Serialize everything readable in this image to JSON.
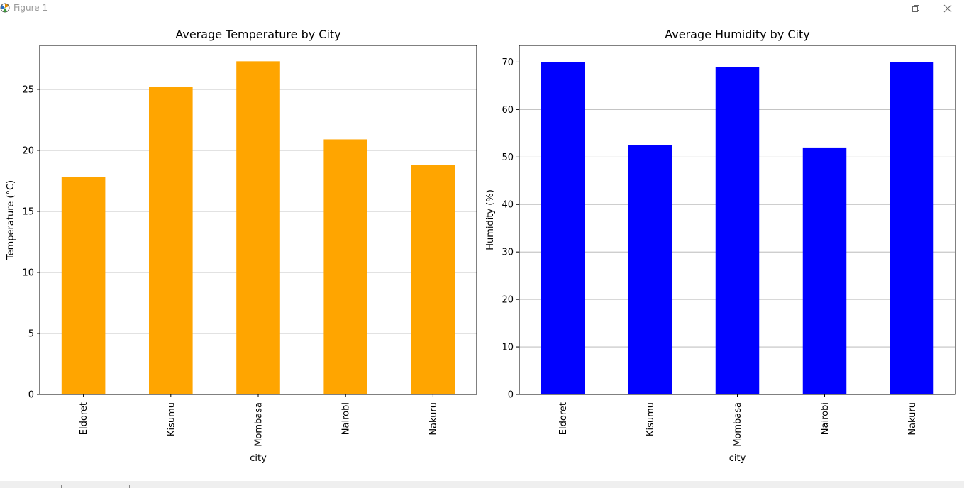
{
  "window": {
    "title": "Figure 1",
    "controls": [
      "minimize",
      "restore",
      "close"
    ]
  },
  "chart_data": [
    {
      "type": "bar",
      "title": "Average Temperature by City",
      "xlabel": "city",
      "ylabel": "Temperature (°C)",
      "categories": [
        "Eldoret",
        "Kisumu",
        "Mombasa",
        "Nairobi",
        "Nakuru"
      ],
      "values": [
        17.8,
        25.2,
        27.3,
        20.9,
        18.8
      ],
      "ylim": [
        0,
        28.6
      ],
      "yticks": [
        0,
        5,
        10,
        15,
        20,
        25
      ],
      "color": "#ffa500",
      "grid": "y"
    },
    {
      "type": "bar",
      "title": "Average Humidity by City",
      "xlabel": "city",
      "ylabel": "Humidity (%)",
      "categories": [
        "Eldoret",
        "Kisumu",
        "Mombasa",
        "Nairobi",
        "Nakuru"
      ],
      "values": [
        70,
        52.5,
        69,
        52,
        70
      ],
      "ylim": [
        0,
        73.5
      ],
      "yticks": [
        0,
        10,
        20,
        30,
        40,
        50,
        60,
        70
      ],
      "color": "#0000ff",
      "grid": "y"
    }
  ]
}
